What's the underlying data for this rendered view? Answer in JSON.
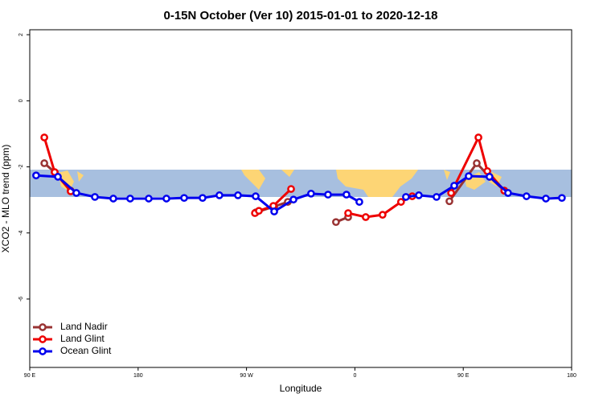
{
  "chart_data": {
    "type": "line",
    "title": "0-15N October (Ver 10)   2015-01-01 to 2020-12-18",
    "x_label": "Longitude",
    "y_label": "XCO2 - MLO trend (ppm)",
    "xlim": [
      90,
      540
    ],
    "ylim": [
      -8.07,
      2.15
    ],
    "xticks": [
      {
        "value": 90,
        "label": "90 E"
      },
      180,
      {
        "value": 270,
        "label": "90 W"
      },
      {
        "value": 360,
        "label": "0"
      },
      {
        "value": 450,
        "label": "90 E"
      },
      {
        "value": 540,
        "label": "180"
      }
    ],
    "yticks": [
      2,
      0,
      -2,
      -4,
      -6
    ],
    "legend": "bottom-left",
    "series": [
      {
        "name": "Land Nadir",
        "color": "#993333",
        "x": [
          102.1,
          110.7,
          124.0,
          null,
          277.6,
          293.0,
          304.3,
          null,
          344.3,
          354.4,
          null,
          438.5,
          461.2,
          471.8,
          484.1
        ],
        "values": [
          -1.89,
          -2.16,
          -2.72,
          null,
          -3.38,
          -3.2,
          -3.06,
          null,
          -3.67,
          -3.52,
          null,
          -3.04,
          -1.89,
          -2.3,
          -2.72
        ]
      },
      {
        "name": "Land Glint",
        "color": "#ee0000",
        "x": [
          102.1,
          110.7,
          124.0,
          null,
          277.0,
          280.3,
          292.3,
          307.0,
          null,
          354.4,
          369.0,
          383.0,
          398.3,
          407.6,
          null,
          439.9,
          462.6,
          470.0,
          484.1
        ],
        "values": [
          -1.11,
          -2.16,
          -2.74,
          null,
          -3.4,
          -3.33,
          -3.18,
          -2.67,
          null,
          -3.4,
          -3.52,
          -3.45,
          -3.06,
          -2.89,
          null,
          -2.79,
          -1.11,
          -2.13,
          -2.72
        ]
      },
      {
        "name": "Ocean Glint",
        "color": "#0000ee",
        "x": [
          95.3,
          113.4,
          128.7,
          144.1,
          159.4,
          173.4,
          188.8,
          203.5,
          218.2,
          233.5,
          247.5,
          262.9,
          277.6,
          293.0,
          309.0,
          323.6,
          337.7,
          353.0,
          363.7,
          null,
          402.4,
          413.1,
          427.8,
          442.5,
          454.5,
          471.8,
          487.2,
          502.5,
          518.6,
          531.9
        ],
        "values": [
          -2.26,
          -2.3,
          -2.79,
          -2.91,
          -2.96,
          -2.96,
          -2.96,
          -2.96,
          -2.94,
          -2.94,
          -2.86,
          -2.86,
          -2.89,
          -3.35,
          -2.99,
          -2.81,
          -2.84,
          -2.84,
          -3.06,
          null,
          -2.91,
          -2.86,
          -2.91,
          -2.57,
          -2.28,
          -2.3,
          -2.79,
          -2.89,
          -2.96,
          -2.94
        ]
      }
    ]
  }
}
